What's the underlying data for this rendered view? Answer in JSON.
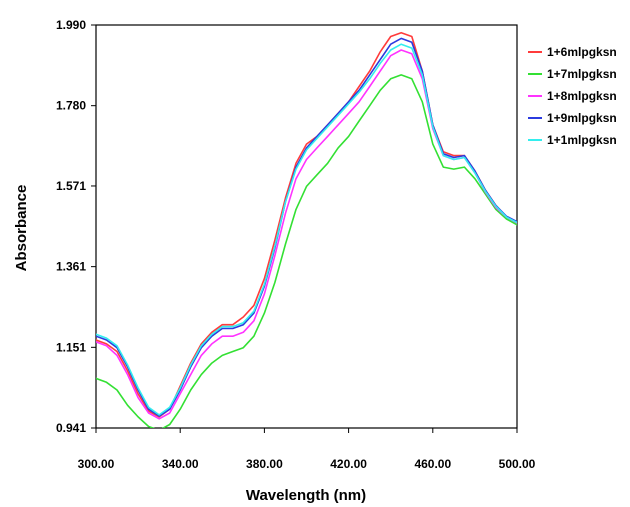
{
  "chart_data": {
    "type": "line",
    "xlabel": "Wavelength (nm)",
    "ylabel": "Absorbance",
    "xlim": [
      300,
      500
    ],
    "ylim": [
      0.941,
      1.99
    ],
    "x_ticks": [
      "300.00",
      "340.00",
      "380.00",
      "420.00",
      "460.00",
      "500.00"
    ],
    "y_ticks": [
      "0.941",
      "1.151",
      "1.361",
      "1.571",
      "1.780",
      "1.990"
    ],
    "grid": false,
    "legend_position": "top-right",
    "series": [
      {
        "name": "1+6mlpgksn",
        "color": "#ff3b3b",
        "points": [
          [
            300,
            1.17
          ],
          [
            305,
            1.16
          ],
          [
            310,
            1.14
          ],
          [
            315,
            1.09
          ],
          [
            320,
            1.03
          ],
          [
            325,
            0.985
          ],
          [
            330,
            0.97
          ],
          [
            335,
            0.99
          ],
          [
            340,
            1.05
          ],
          [
            345,
            1.11
          ],
          [
            350,
            1.16
          ],
          [
            355,
            1.19
          ],
          [
            360,
            1.21
          ],
          [
            365,
            1.21
          ],
          [
            370,
            1.23
          ],
          [
            375,
            1.26
          ],
          [
            380,
            1.33
          ],
          [
            385,
            1.43
          ],
          [
            390,
            1.54
          ],
          [
            395,
            1.63
          ],
          [
            400,
            1.68
          ],
          [
            405,
            1.7
          ],
          [
            410,
            1.73
          ],
          [
            415,
            1.76
          ],
          [
            420,
            1.79
          ],
          [
            425,
            1.83
          ],
          [
            430,
            1.87
          ],
          [
            435,
            1.92
          ],
          [
            440,
            1.96
          ],
          [
            445,
            1.97
          ],
          [
            450,
            1.96
          ],
          [
            455,
            1.87
          ],
          [
            460,
            1.73
          ],
          [
            465,
            1.66
          ],
          [
            470,
            1.65
          ],
          [
            475,
            1.65
          ],
          [
            480,
            1.61
          ],
          [
            485,
            1.56
          ],
          [
            490,
            1.52
          ],
          [
            495,
            1.49
          ],
          [
            500,
            1.475
          ]
        ]
      },
      {
        "name": "1+7mlpgksn",
        "color": "#33e033",
        "points": [
          [
            300,
            1.07
          ],
          [
            305,
            1.06
          ],
          [
            310,
            1.04
          ],
          [
            315,
            1.0
          ],
          [
            320,
            0.97
          ],
          [
            325,
            0.945
          ],
          [
            330,
            0.935
          ],
          [
            335,
            0.95
          ],
          [
            340,
            0.99
          ],
          [
            345,
            1.04
          ],
          [
            350,
            1.08
          ],
          [
            355,
            1.11
          ],
          [
            360,
            1.13
          ],
          [
            365,
            1.14
          ],
          [
            370,
            1.15
          ],
          [
            375,
            1.18
          ],
          [
            380,
            1.24
          ],
          [
            385,
            1.32
          ],
          [
            390,
            1.42
          ],
          [
            395,
            1.51
          ],
          [
            400,
            1.57
          ],
          [
            405,
            1.6
          ],
          [
            410,
            1.63
          ],
          [
            415,
            1.67
          ],
          [
            420,
            1.7
          ],
          [
            425,
            1.74
          ],
          [
            430,
            1.78
          ],
          [
            435,
            1.82
          ],
          [
            440,
            1.85
          ],
          [
            445,
            1.86
          ],
          [
            450,
            1.85
          ],
          [
            455,
            1.79
          ],
          [
            460,
            1.68
          ],
          [
            465,
            1.62
          ],
          [
            470,
            1.615
          ],
          [
            475,
            1.62
          ],
          [
            480,
            1.59
          ],
          [
            485,
            1.55
          ],
          [
            490,
            1.51
          ],
          [
            495,
            1.485
          ],
          [
            500,
            1.47
          ]
        ]
      },
      {
        "name": "1+8mlpgksn",
        "color": "#ff33ff",
        "points": [
          [
            300,
            1.165
          ],
          [
            305,
            1.155
          ],
          [
            310,
            1.13
          ],
          [
            315,
            1.08
          ],
          [
            320,
            1.02
          ],
          [
            325,
            0.98
          ],
          [
            330,
            0.965
          ],
          [
            335,
            0.98
          ],
          [
            340,
            1.03
          ],
          [
            345,
            1.08
          ],
          [
            350,
            1.13
          ],
          [
            355,
            1.16
          ],
          [
            360,
            1.18
          ],
          [
            365,
            1.18
          ],
          [
            370,
            1.19
          ],
          [
            375,
            1.22
          ],
          [
            380,
            1.29
          ],
          [
            385,
            1.39
          ],
          [
            390,
            1.5
          ],
          [
            395,
            1.59
          ],
          [
            400,
            1.64
          ],
          [
            405,
            1.67
          ],
          [
            410,
            1.7
          ],
          [
            415,
            1.73
          ],
          [
            420,
            1.76
          ],
          [
            425,
            1.79
          ],
          [
            430,
            1.83
          ],
          [
            435,
            1.87
          ],
          [
            440,
            1.91
          ],
          [
            445,
            1.925
          ],
          [
            450,
            1.915
          ],
          [
            455,
            1.85
          ],
          [
            460,
            1.72
          ],
          [
            465,
            1.65
          ],
          [
            470,
            1.64
          ],
          [
            475,
            1.645
          ],
          [
            480,
            1.605
          ],
          [
            485,
            1.555
          ],
          [
            490,
            1.515
          ],
          [
            495,
            1.49
          ],
          [
            500,
            1.475
          ]
        ]
      },
      {
        "name": "1+9mlpgksn",
        "color": "#2b3bdf",
        "points": [
          [
            300,
            1.18
          ],
          [
            305,
            1.17
          ],
          [
            310,
            1.15
          ],
          [
            315,
            1.1
          ],
          [
            320,
            1.04
          ],
          [
            325,
            0.99
          ],
          [
            330,
            0.972
          ],
          [
            335,
            0.99
          ],
          [
            340,
            1.04
          ],
          [
            345,
            1.1
          ],
          [
            350,
            1.15
          ],
          [
            355,
            1.18
          ],
          [
            360,
            1.2
          ],
          [
            365,
            1.2
          ],
          [
            370,
            1.21
          ],
          [
            375,
            1.24
          ],
          [
            380,
            1.31
          ],
          [
            385,
            1.41
          ],
          [
            390,
            1.53
          ],
          [
            395,
            1.62
          ],
          [
            400,
            1.67
          ],
          [
            405,
            1.7
          ],
          [
            410,
            1.73
          ],
          [
            415,
            1.76
          ],
          [
            420,
            1.79
          ],
          [
            425,
            1.82
          ],
          [
            430,
            1.86
          ],
          [
            435,
            1.9
          ],
          [
            440,
            1.94
          ],
          [
            445,
            1.955
          ],
          [
            450,
            1.945
          ],
          [
            455,
            1.87
          ],
          [
            460,
            1.73
          ],
          [
            465,
            1.655
          ],
          [
            470,
            1.645
          ],
          [
            475,
            1.65
          ],
          [
            480,
            1.61
          ],
          [
            485,
            1.56
          ],
          [
            490,
            1.52
          ],
          [
            495,
            1.492
          ],
          [
            500,
            1.478
          ]
        ]
      },
      {
        "name": "1+1mlpgksn",
        "color": "#33eeee",
        "points": [
          [
            300,
            1.185
          ],
          [
            305,
            1.175
          ],
          [
            310,
            1.155
          ],
          [
            315,
            1.105
          ],
          [
            320,
            1.045
          ],
          [
            325,
            0.995
          ],
          [
            330,
            0.975
          ],
          [
            335,
            0.995
          ],
          [
            340,
            1.045
          ],
          [
            345,
            1.105
          ],
          [
            350,
            1.155
          ],
          [
            355,
            1.185
          ],
          [
            360,
            1.205
          ],
          [
            365,
            1.205
          ],
          [
            370,
            1.215
          ],
          [
            375,
            1.245
          ],
          [
            380,
            1.315
          ],
          [
            385,
            1.415
          ],
          [
            390,
            1.53
          ],
          [
            395,
            1.615
          ],
          [
            400,
            1.665
          ],
          [
            405,
            1.695
          ],
          [
            410,
            1.725
          ],
          [
            415,
            1.755
          ],
          [
            420,
            1.785
          ],
          [
            425,
            1.815
          ],
          [
            430,
            1.85
          ],
          [
            435,
            1.89
          ],
          [
            440,
            1.925
          ],
          [
            445,
            1.94
          ],
          [
            450,
            1.93
          ],
          [
            455,
            1.86
          ],
          [
            460,
            1.725
          ],
          [
            465,
            1.65
          ],
          [
            470,
            1.64
          ],
          [
            475,
            1.645
          ],
          [
            480,
            1.605
          ],
          [
            485,
            1.557
          ],
          [
            490,
            1.518
          ],
          [
            495,
            1.49
          ],
          [
            500,
            1.476
          ]
        ]
      }
    ]
  }
}
